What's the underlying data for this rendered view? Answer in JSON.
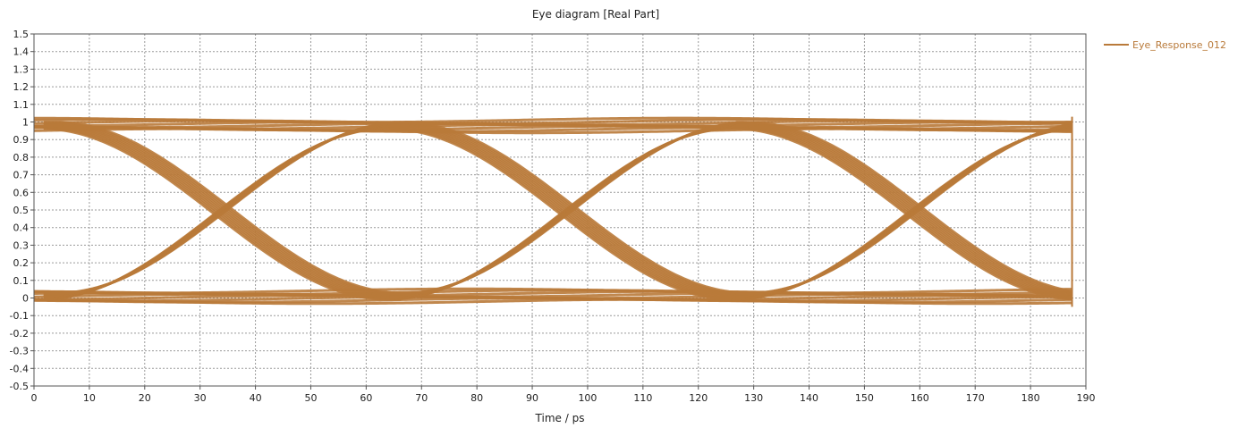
{
  "chart_data": {
    "type": "line",
    "title": "Eye diagram [Real Part]",
    "xlabel": "Time / ps",
    "ylabel": "",
    "xlim": [
      0,
      190
    ],
    "ylim": [
      -0.5,
      1.5
    ],
    "xticks": [
      0,
      10,
      20,
      30,
      40,
      50,
      60,
      70,
      80,
      90,
      100,
      110,
      120,
      130,
      140,
      150,
      160,
      170,
      180,
      190
    ],
    "yticks": [
      -0.5,
      -0.4,
      -0.3,
      -0.2,
      -0.1,
      0,
      0.1,
      0.2,
      0.3,
      0.4,
      0.5,
      0.6,
      0.7,
      0.8,
      0.9,
      1,
      1.1,
      1.2,
      1.3,
      1.4,
      1.5
    ],
    "grid": true,
    "legend_position": "right",
    "unit_interval_ps": 62.5,
    "crossings": [
      {
        "x": 34,
        "y": 0.5
      },
      {
        "x": 96.5,
        "y": 0.5
      },
      {
        "x": 159,
        "y": 0.5
      }
    ],
    "series": [
      {
        "name": "Eye_Response_012",
        "color": "#b97a3a",
        "high_level": 0.98,
        "low_level": 0.01,
        "trace_spread": 0.06,
        "x_end": 187.5
      }
    ]
  }
}
